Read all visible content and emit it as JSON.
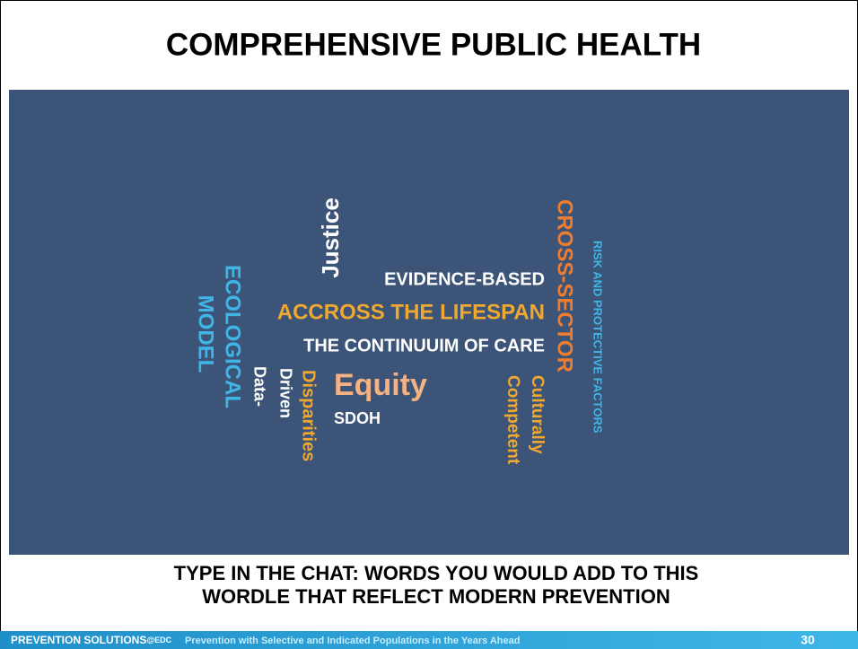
{
  "header": {
    "title": "COMPREHENSIVE PUBLIC HEALTH"
  },
  "wordle": {
    "words": [
      "Justice",
      "EVIDENCE-BASED",
      "ACCROSS THE LIFESPAN",
      "THE CONTINUUIM OF CARE",
      "Equity",
      "SDOH",
      "ECOLOGICAL",
      "MODEL",
      "Data-",
      "Driven",
      "Disparities",
      "CROSS-SECTOR",
      "RISK AND PROTECTIVE FACTORS",
      "Culturally",
      "Competent"
    ]
  },
  "prompt": {
    "lines": [
      "TYPE IN THE CHAT: WORDS YOU WOULD ADD TO THIS",
      "WORDLE THAT REFLECT MODERN PREVENTION"
    ]
  },
  "footer": {
    "brand": "PREVENTION SOLUTIONS",
    "brand_suffix": "@EDC",
    "subtitle": "Prevention with Selective and Indicated Populations in the Years Ahead",
    "page": "30"
  }
}
